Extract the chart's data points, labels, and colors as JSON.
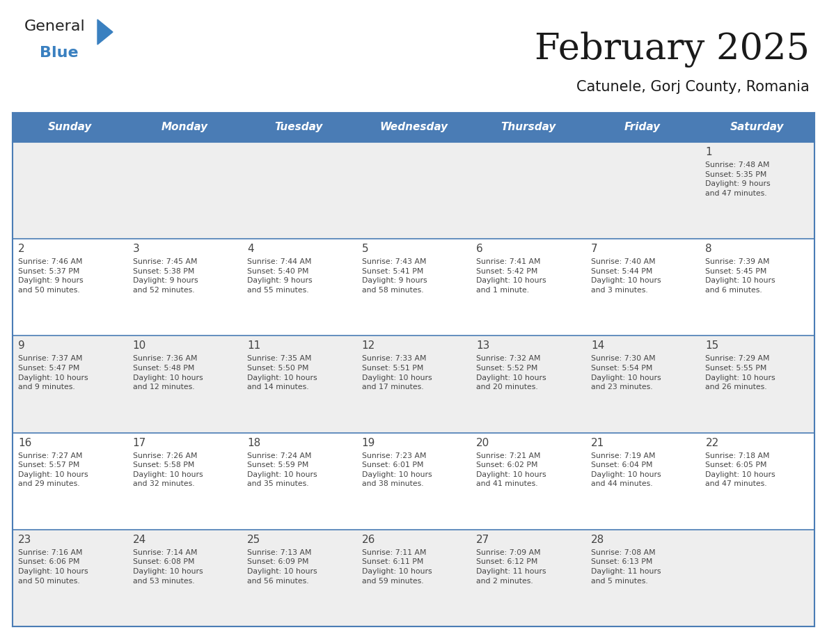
{
  "title": "February 2025",
  "subtitle": "Catunele, Gorj County, Romania",
  "header_bg": "#4a7cb5",
  "header_text_color": "#FFFFFF",
  "cell_bg_light": "#EEEEEE",
  "cell_bg_white": "#FFFFFF",
  "border_color": "#4a7cb5",
  "text_color": "#444444",
  "day_headers": [
    "Sunday",
    "Monday",
    "Tuesday",
    "Wednesday",
    "Thursday",
    "Friday",
    "Saturday"
  ],
  "weeks": [
    [
      {
        "day": "",
        "info": ""
      },
      {
        "day": "",
        "info": ""
      },
      {
        "day": "",
        "info": ""
      },
      {
        "day": "",
        "info": ""
      },
      {
        "day": "",
        "info": ""
      },
      {
        "day": "",
        "info": ""
      },
      {
        "day": "1",
        "info": "Sunrise: 7:48 AM\nSunset: 5:35 PM\nDaylight: 9 hours\nand 47 minutes."
      }
    ],
    [
      {
        "day": "2",
        "info": "Sunrise: 7:46 AM\nSunset: 5:37 PM\nDaylight: 9 hours\nand 50 minutes."
      },
      {
        "day": "3",
        "info": "Sunrise: 7:45 AM\nSunset: 5:38 PM\nDaylight: 9 hours\nand 52 minutes."
      },
      {
        "day": "4",
        "info": "Sunrise: 7:44 AM\nSunset: 5:40 PM\nDaylight: 9 hours\nand 55 minutes."
      },
      {
        "day": "5",
        "info": "Sunrise: 7:43 AM\nSunset: 5:41 PM\nDaylight: 9 hours\nand 58 minutes."
      },
      {
        "day": "6",
        "info": "Sunrise: 7:41 AM\nSunset: 5:42 PM\nDaylight: 10 hours\nand 1 minute."
      },
      {
        "day": "7",
        "info": "Sunrise: 7:40 AM\nSunset: 5:44 PM\nDaylight: 10 hours\nand 3 minutes."
      },
      {
        "day": "8",
        "info": "Sunrise: 7:39 AM\nSunset: 5:45 PM\nDaylight: 10 hours\nand 6 minutes."
      }
    ],
    [
      {
        "day": "9",
        "info": "Sunrise: 7:37 AM\nSunset: 5:47 PM\nDaylight: 10 hours\nand 9 minutes."
      },
      {
        "day": "10",
        "info": "Sunrise: 7:36 AM\nSunset: 5:48 PM\nDaylight: 10 hours\nand 12 minutes."
      },
      {
        "day": "11",
        "info": "Sunrise: 7:35 AM\nSunset: 5:50 PM\nDaylight: 10 hours\nand 14 minutes."
      },
      {
        "day": "12",
        "info": "Sunrise: 7:33 AM\nSunset: 5:51 PM\nDaylight: 10 hours\nand 17 minutes."
      },
      {
        "day": "13",
        "info": "Sunrise: 7:32 AM\nSunset: 5:52 PM\nDaylight: 10 hours\nand 20 minutes."
      },
      {
        "day": "14",
        "info": "Sunrise: 7:30 AM\nSunset: 5:54 PM\nDaylight: 10 hours\nand 23 minutes."
      },
      {
        "day": "15",
        "info": "Sunrise: 7:29 AM\nSunset: 5:55 PM\nDaylight: 10 hours\nand 26 minutes."
      }
    ],
    [
      {
        "day": "16",
        "info": "Sunrise: 7:27 AM\nSunset: 5:57 PM\nDaylight: 10 hours\nand 29 minutes."
      },
      {
        "day": "17",
        "info": "Sunrise: 7:26 AM\nSunset: 5:58 PM\nDaylight: 10 hours\nand 32 minutes."
      },
      {
        "day": "18",
        "info": "Sunrise: 7:24 AM\nSunset: 5:59 PM\nDaylight: 10 hours\nand 35 minutes."
      },
      {
        "day": "19",
        "info": "Sunrise: 7:23 AM\nSunset: 6:01 PM\nDaylight: 10 hours\nand 38 minutes."
      },
      {
        "day": "20",
        "info": "Sunrise: 7:21 AM\nSunset: 6:02 PM\nDaylight: 10 hours\nand 41 minutes."
      },
      {
        "day": "21",
        "info": "Sunrise: 7:19 AM\nSunset: 6:04 PM\nDaylight: 10 hours\nand 44 minutes."
      },
      {
        "day": "22",
        "info": "Sunrise: 7:18 AM\nSunset: 6:05 PM\nDaylight: 10 hours\nand 47 minutes."
      }
    ],
    [
      {
        "day": "23",
        "info": "Sunrise: 7:16 AM\nSunset: 6:06 PM\nDaylight: 10 hours\nand 50 minutes."
      },
      {
        "day": "24",
        "info": "Sunrise: 7:14 AM\nSunset: 6:08 PM\nDaylight: 10 hours\nand 53 minutes."
      },
      {
        "day": "25",
        "info": "Sunrise: 7:13 AM\nSunset: 6:09 PM\nDaylight: 10 hours\nand 56 minutes."
      },
      {
        "day": "26",
        "info": "Sunrise: 7:11 AM\nSunset: 6:11 PM\nDaylight: 10 hours\nand 59 minutes."
      },
      {
        "day": "27",
        "info": "Sunrise: 7:09 AM\nSunset: 6:12 PM\nDaylight: 11 hours\nand 2 minutes."
      },
      {
        "day": "28",
        "info": "Sunrise: 7:08 AM\nSunset: 6:13 PM\nDaylight: 11 hours\nand 5 minutes."
      },
      {
        "day": "",
        "info": ""
      }
    ]
  ]
}
